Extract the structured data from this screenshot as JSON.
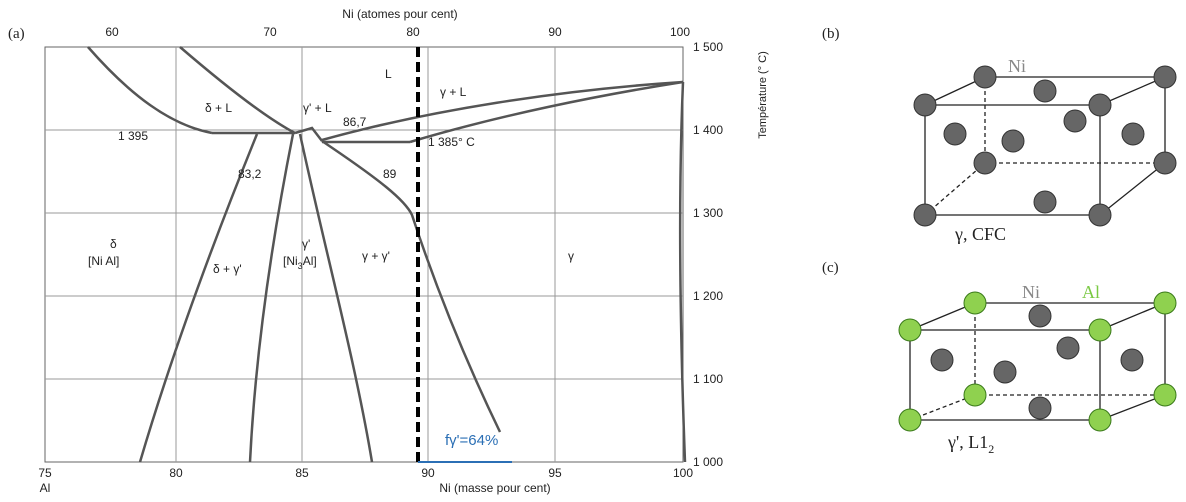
{
  "panel_a": {
    "label": "(a)",
    "top_axis": {
      "title": "Ni (atomes pour cent)",
      "ticks": [
        "60",
        "70",
        "80",
        "90",
        "100"
      ]
    },
    "right_axis": {
      "title": "Température (° C)",
      "ticks": [
        "1 500",
        "1 400",
        "1 300",
        "1 200",
        "1 100",
        "1 000"
      ]
    },
    "bottom_axis": {
      "title": "Ni (masse pour cent)",
      "ticks": [
        "75",
        "80",
        "85",
        "90",
        "95",
        "100"
      ],
      "left_label": "Al"
    },
    "regions": {
      "liquid": "L",
      "delta_liquid": "δ + L",
      "gp_liquid": "γ' + L",
      "g_liquid": "γ + L",
      "delta": "δ",
      "delta_formula": "[Ni Al]",
      "delta_gp": "δ + γ'",
      "gp": "γ'",
      "gp_formula": {
        "prefix": "[Ni",
        "sub": "3",
        "suffix": "Al]"
      },
      "g_gp": "γ + γ'",
      "g": "γ"
    },
    "annotations": {
      "t1395": "1 395",
      "t1385": "1 385° C",
      "c867": "86,7",
      "c832": "83,2",
      "c89": "89",
      "fraction": "fγ'=64%"
    }
  },
  "panel_b": {
    "label": "(b)",
    "atom": "Ni",
    "caption": "γ, CFC"
  },
  "panel_c": {
    "label": "(c)",
    "atom1": "Ni",
    "atom2": "Al",
    "caption": {
      "text": "γ', L1",
      "sub": "2"
    }
  }
}
